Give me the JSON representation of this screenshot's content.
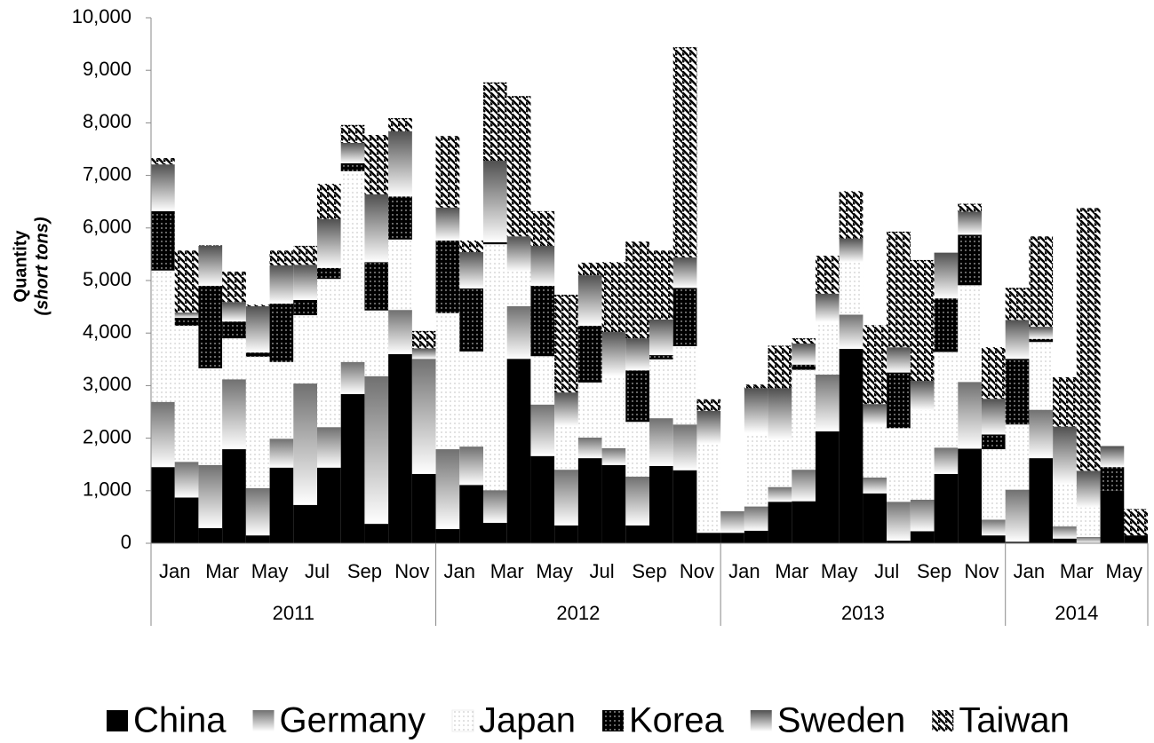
{
  "chart_data": {
    "type": "stacked_bar",
    "ylabel": [
      "Quantity",
      "(short tons)"
    ],
    "categories": [
      "Jan",
      null,
      "Mar",
      null,
      "May",
      null,
      "Jul",
      null,
      "Sep",
      null,
      "Nov",
      null,
      "Jan",
      null,
      "Mar",
      null,
      "May",
      null,
      "Jul",
      null,
      "Sep",
      null,
      "Nov",
      null,
      "Jan",
      null,
      "Mar",
      null,
      "May",
      null,
      "Jul",
      null,
      "Sep",
      null,
      "Nov",
      null,
      "Jan",
      null,
      "Mar",
      null,
      "May",
      null
    ],
    "years": [
      "2011",
      "2012",
      "2013",
      "2014"
    ],
    "ylim": [
      0,
      10000
    ],
    "yticks": [
      0,
      {
        "value": 1000,
        "label": "1,000"
      },
      {
        "value": 2000,
        "label": "2,000"
      },
      {
        "value": 3000,
        "label": "3,000"
      },
      {
        "value": 4000,
        "label": "4,000"
      },
      {
        "value": 5000,
        "label": "5,000"
      },
      {
        "value": 6000,
        "label": "6,000"
      },
      {
        "value": 7000,
        "label": "7,000"
      },
      {
        "value": 8000,
        "label": "8,000"
      },
      {
        "value": 9000,
        "label": "9,000"
      },
      {
        "value": 10000,
        "label": "10,000"
      }
    ],
    "series": [
      {
        "name": "China",
        "color": "#000000",
        "values": [
          1450,
          870,
          290,
          1790,
          150,
          1440,
          730,
          1440,
          2840,
          370,
          3600,
          1320,
          270,
          1110,
          390,
          3510,
          1660,
          340,
          1620,
          1490,
          340,
          1470,
          1390,
          200,
          200,
          240,
          790,
          800,
          2130,
          3700,
          950,
          50,
          230,
          1320,
          1800,
          150,
          30,
          1620,
          90,
          0,
          1000,
          150
        ]
      },
      {
        "name": "Germany",
        "color": "#808080",
        "values": [
          1240,
          680,
          1200,
          1330,
          900,
          550,
          2310,
          770,
          610,
          2810,
          840,
          2190,
          1520,
          730,
          620,
          1000,
          980,
          1060,
          390,
          320,
          930,
          910,
          870,
          0,
          410,
          460,
          280,
          600,
          1080,
          650,
          300,
          740,
          600,
          500,
          1270,
          300,
          990,
          920,
          230,
          120,
          0,
          0
        ]
      },
      {
        "name": "Japan",
        "color": "#ffffff",
        "values": [
          2500,
          2590,
          1840,
          780,
          2500,
          1460,
          1300,
          2820,
          3630,
          1250,
          1340,
          0,
          2590,
          1810,
          4680,
          660,
          920,
          830,
          1050,
          1370,
          1040,
          1120,
          1490,
          1690,
          0,
          1400,
          900,
          1900,
          1000,
          1000,
          1000,
          1400,
          1700,
          1820,
          1840,
          1340,
          1240,
          1290,
          800,
          560,
          0,
          0
        ]
      },
      {
        "name": "Korea",
        "color": "#111111",
        "values": [
          1130,
          150,
          1570,
          320,
          80,
          1110,
          290,
          210,
          150,
          920,
          820,
          0,
          1380,
          1200,
          40,
          0,
          1340,
          0,
          1080,
          0,
          980,
          80,
          1110,
          0,
          0,
          0,
          0,
          100,
          0,
          0,
          0,
          1060,
          0,
          1020,
          960,
          280,
          1250,
          60,
          0,
          0,
          450,
          0
        ]
      },
      {
        "name": "Sweden",
        "color": "#a0a0a0",
        "values": [
          890,
          100,
          760,
          370,
          880,
          730,
          670,
          930,
          390,
          1290,
          1240,
          200,
          630,
          690,
          1550,
          670,
          760,
          640,
          960,
          840,
          610,
          680,
          580,
          630,
          0,
          850,
          980,
          400,
          540,
          450,
          400,
          480,
          560,
          870,
          440,
          680,
          740,
          230,
          1100,
          700,
          400,
          0
        ]
      },
      {
        "name": "Taiwan",
        "color": "#000000",
        "values": [
          120,
          1180,
          10,
          580,
          30,
          280,
          360,
          670,
          340,
          1130,
          250,
          330,
          1360,
          220,
          1490,
          2670,
          660,
          1860,
          240,
          1330,
          1840,
          1310,
          4000,
          220,
          0,
          70,
          810,
          100,
          720,
          900,
          1500,
          2200,
          2300,
          0,
          150,
          980,
          610,
          1720,
          940,
          5000,
          0,
          500
        ]
      }
    ]
  }
}
